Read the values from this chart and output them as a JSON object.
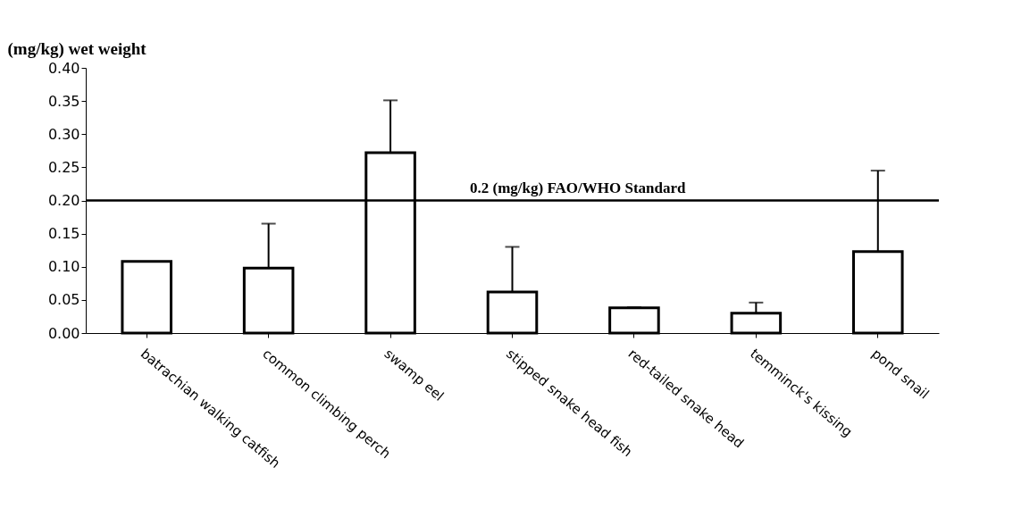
{
  "chart_data": {
    "type": "bar",
    "ylabel": "(mg/kg) wet weight",
    "categories": [
      "batrachian walking catfish",
      "common climbing perch",
      "swamp eel",
      "stipped snake head fish",
      "red-tailed snake head",
      "temminck's kissing",
      "pond snail"
    ],
    "values": [
      0.108,
      0.098,
      0.272,
      0.062,
      0.038,
      0.03,
      0.123
    ],
    "errors": [
      null,
      [
        0.098,
        0.165
      ],
      [
        0.272,
        0.351
      ],
      [
        0.062,
        0.13
      ],
      [
        0.038,
        0.039
      ],
      [
        0.03,
        0.046
      ],
      [
        0.123,
        0.245
      ]
    ],
    "color": "#ffffff",
    "ylim": [
      0,
      0.4
    ],
    "yticks": [
      {
        "value": 0,
        "label": "0.00"
      },
      {
        "value": 0.05,
        "label": "0.05"
      },
      {
        "value": 0.1,
        "label": "0.10"
      },
      {
        "value": 0.15,
        "label": "0.15"
      },
      {
        "value": 0.2,
        "label": "0.20"
      },
      {
        "value": 0.25,
        "label": "0.25"
      },
      {
        "value": 0.3,
        "label": "0.30"
      },
      {
        "value": 0.35,
        "label": "0.35"
      },
      {
        "value": 0.4,
        "label": "0.40"
      }
    ],
    "ref_lines": [
      {
        "axis": "y",
        "value": 0.2,
        "label": "0.2 (mg/kg) FAO/WHO Standard",
        "color": "#000000"
      }
    ],
    "grid": false
  }
}
